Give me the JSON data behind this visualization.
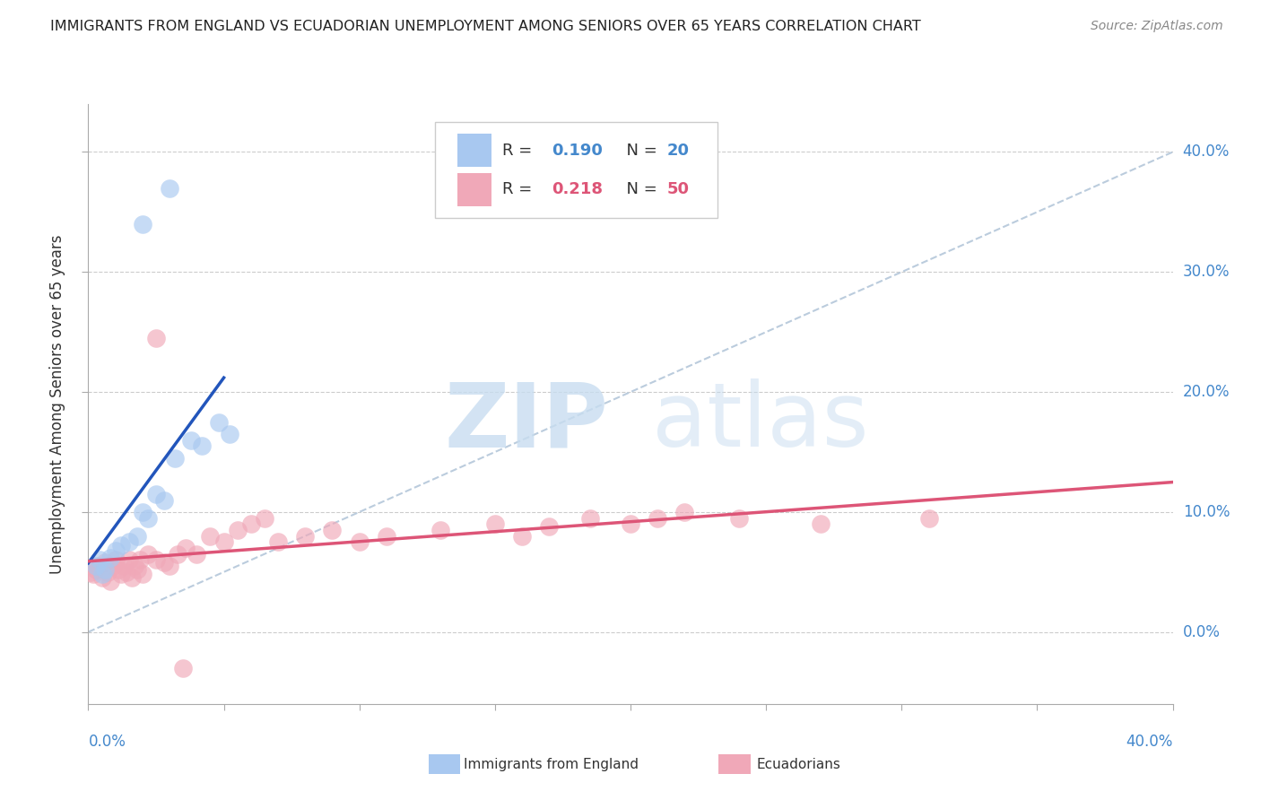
{
  "title": "IMMIGRANTS FROM ENGLAND VS ECUADORIAN UNEMPLOYMENT AMONG SENIORS OVER 65 YEARS CORRELATION CHART",
  "source": "Source: ZipAtlas.com",
  "ylabel": "Unemployment Among Seniors over 65 years",
  "color_blue": "#a8c8f0",
  "color_pink": "#f0a8b8",
  "line_blue": "#2255bb",
  "line_pink": "#dd5577",
  "diag_color": "#bbccdd",
  "text_blue": "#4488cc",
  "watermark_color": "#ddeeff",
  "background_color": "#ffffff",
  "grid_color": "#cccccc",
  "xlim": [
    0.0,
    0.4
  ],
  "ylim": [
    -0.06,
    0.44
  ],
  "ytick_vals": [
    0.0,
    0.1,
    0.2,
    0.3,
    0.4
  ],
  "ytick_labels": [
    "0.0%",
    "10.0%",
    "20.0%",
    "30.0%",
    "40.0%"
  ],
  "blue_scatter_x": [
    0.003,
    0.004,
    0.005,
    0.006,
    0.008,
    0.01,
    0.012,
    0.015,
    0.018,
    0.02,
    0.022,
    0.025,
    0.028,
    0.032,
    0.038,
    0.042,
    0.048,
    0.052,
    0.02,
    0.03
  ],
  "blue_scatter_y": [
    0.055,
    0.06,
    0.048,
    0.052,
    0.062,
    0.068,
    0.072,
    0.075,
    0.08,
    0.1,
    0.095,
    0.115,
    0.11,
    0.145,
    0.16,
    0.155,
    0.175,
    0.165,
    0.34,
    0.37
  ],
  "pink_scatter_x": [
    0.001,
    0.002,
    0.003,
    0.004,
    0.005,
    0.006,
    0.007,
    0.008,
    0.009,
    0.01,
    0.011,
    0.012,
    0.013,
    0.014,
    0.015,
    0.016,
    0.017,
    0.018,
    0.019,
    0.02,
    0.022,
    0.025,
    0.028,
    0.03,
    0.033,
    0.036,
    0.04,
    0.045,
    0.05,
    0.055,
    0.06,
    0.065,
    0.07,
    0.08,
    0.09,
    0.1,
    0.11,
    0.13,
    0.15,
    0.16,
    0.17,
    0.185,
    0.2,
    0.21,
    0.22,
    0.24,
    0.27,
    0.31,
    0.025,
    0.035
  ],
  "pink_scatter_y": [
    0.05,
    0.048,
    0.052,
    0.055,
    0.045,
    0.058,
    0.05,
    0.042,
    0.055,
    0.06,
    0.052,
    0.048,
    0.055,
    0.05,
    0.06,
    0.045,
    0.055,
    0.052,
    0.06,
    0.048,
    0.065,
    0.06,
    0.058,
    0.055,
    0.065,
    0.07,
    0.065,
    0.08,
    0.075,
    0.085,
    0.09,
    0.095,
    0.075,
    0.08,
    0.085,
    0.075,
    0.08,
    0.085,
    0.09,
    0.08,
    0.088,
    0.095,
    0.09,
    0.095,
    0.1,
    0.095,
    0.09,
    0.095,
    0.245,
    -0.03
  ],
  "legend_r1": "R = 0.190",
  "legend_n1": "N = 20",
  "legend_r2": "R = 0.218",
  "legend_n2": "N = 50"
}
